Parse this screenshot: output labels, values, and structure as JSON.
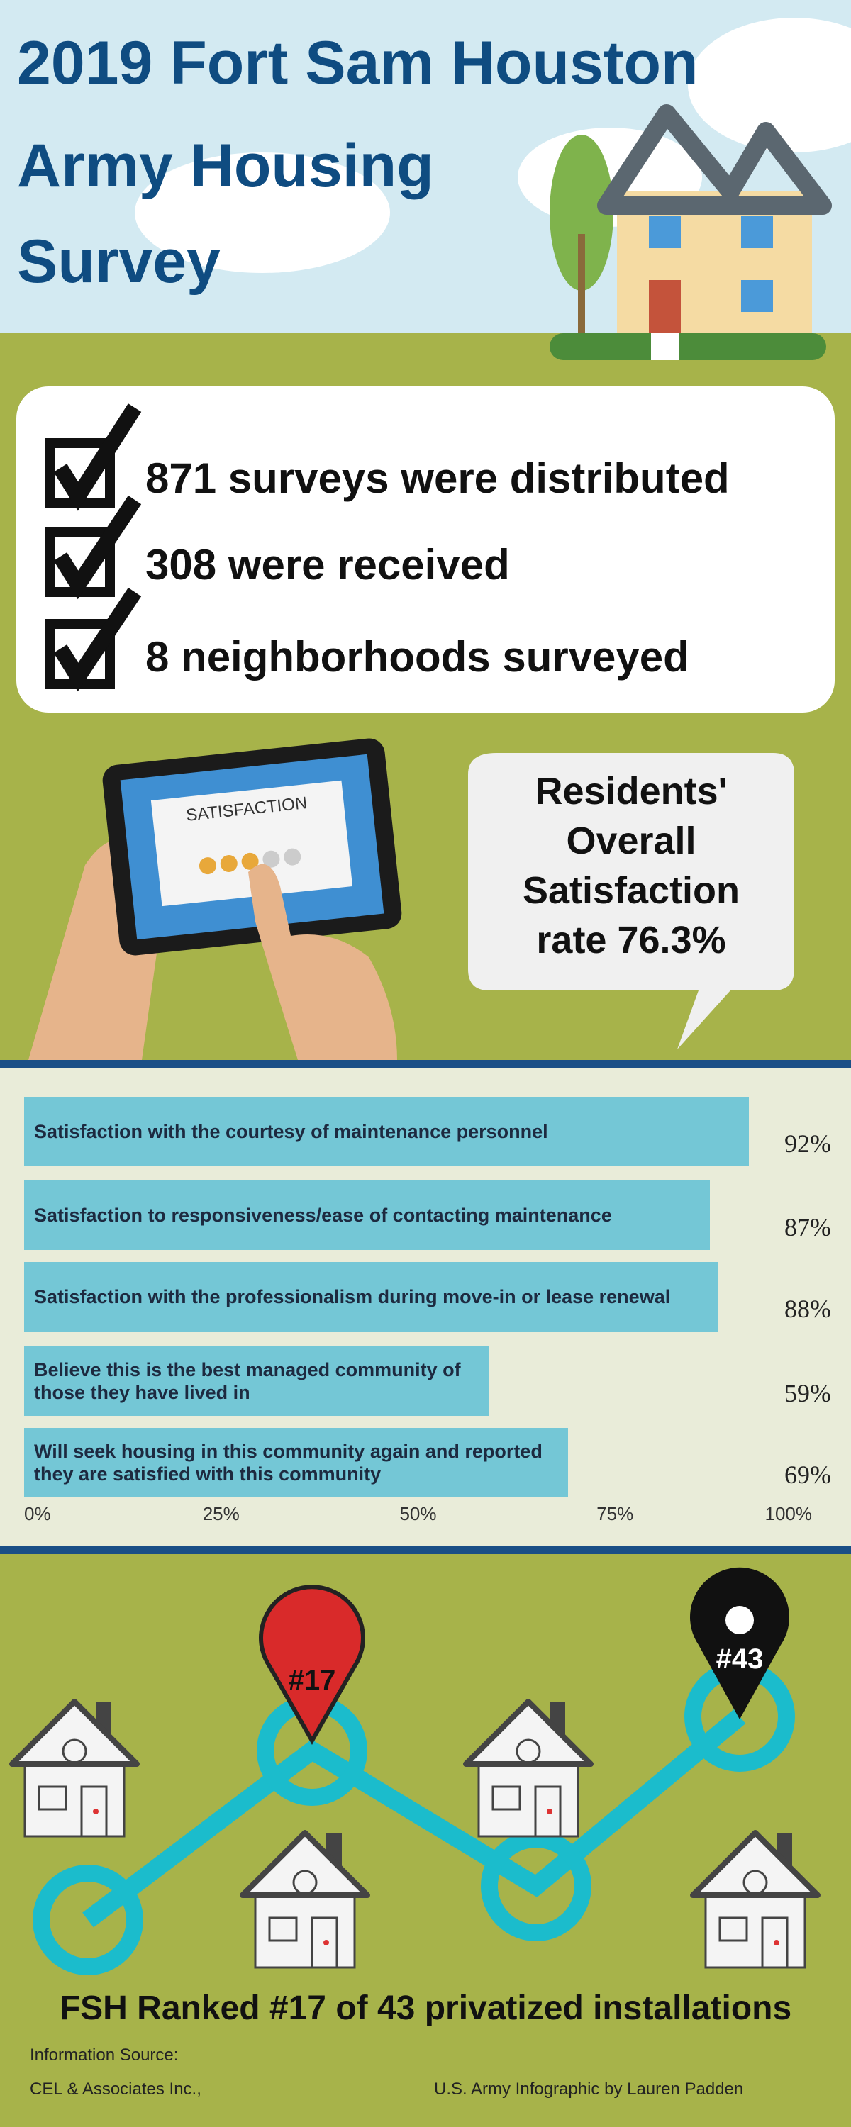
{
  "header": {
    "title_lines": [
      "2019 Fort Sam Houston",
      "Army Housing",
      "Survey"
    ]
  },
  "stats": [
    "871 surveys were distributed",
    "308 were received",
    "8 neighborhoods surveyed"
  ],
  "tablet_label": "SATISFACTION",
  "callout_lines": [
    "Residents'",
    "Overall",
    "Satisfaction",
    "rate 76.3%"
  ],
  "chart_data": {
    "type": "bar",
    "orientation": "horizontal",
    "categories": [
      "Satisfaction with the courtesy of maintenance personnel",
      "Satisfaction to responsiveness/ease of contacting maintenance",
      "Satisfaction with the professionalism during move-in or lease renewal",
      "Believe this is the best managed community of those they have lived in",
      "Will seek housing in this community again and reported they are satisfied with this community"
    ],
    "values": [
      92,
      87,
      88,
      59,
      69
    ],
    "value_labels": [
      "92%",
      "87%",
      "88%",
      "59%",
      "69%"
    ],
    "color": "#74c7d6",
    "xlim": [
      0,
      100
    ],
    "xticks": [
      {
        "value": 0,
        "label": "0%"
      },
      {
        "value": 25,
        "label": "25%"
      },
      {
        "value": 50,
        "label": "50%"
      },
      {
        "value": 75,
        "label": "75%"
      },
      {
        "value": 100,
        "label": "100%"
      }
    ]
  },
  "ranking": {
    "pins": [
      "#17",
      "#43"
    ],
    "headline": "FSH Ranked #17 of 43 privatized installations"
  },
  "footer": {
    "source_lines": [
      "Information Source:",
      "CEL & Associates Inc.,"
    ],
    "credit": "U.S. Army Infographic by Lauren Padden"
  }
}
